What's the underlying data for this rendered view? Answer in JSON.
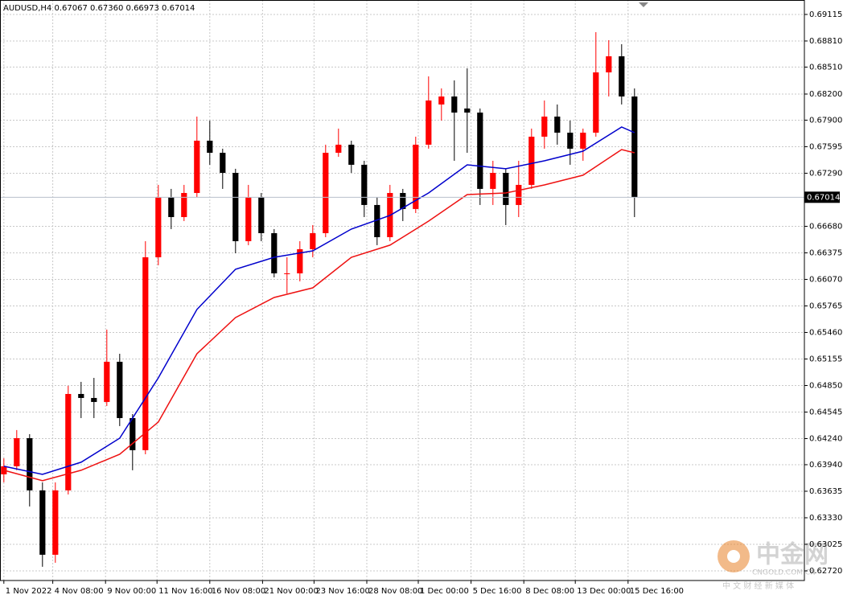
{
  "chart_data": {
    "type": "candlestick",
    "title": "AUDUSD,H4  0.67067 0.67360 0.66973 0.67014",
    "up_color": "#ff0000",
    "down_color": "#000000",
    "grid": true,
    "xlim": [
      -0.3,
      62.2
    ],
    "ylim": [
      0.62609,
      0.69281
    ],
    "xticks": [
      {
        "value": 0,
        "label": "1 Nov 2022"
      },
      {
        "value": 3.8,
        "label": "4 Nov 08:00"
      },
      {
        "value": 7.9,
        "label": "9 Nov 00:00"
      },
      {
        "value": 11.9,
        "label": "11 Nov 16:00"
      },
      {
        "value": 16,
        "label": "16 Nov 08:00"
      },
      {
        "value": 20.1,
        "label": "21 Nov 00:00"
      },
      {
        "value": 24.1,
        "label": "23 Nov 16:00"
      },
      {
        "value": 28.2,
        "label": "28 Nov 08:00"
      },
      {
        "value": 32.2,
        "label": "1 Dec 00:00"
      },
      {
        "value": 36.3,
        "label": "5 Dec 16:00"
      },
      {
        "value": 40.4,
        "label": "8 Dec 08:00"
      },
      {
        "value": 44.4,
        "label": "13 Dec 00:00"
      },
      {
        "value": 48.5,
        "label": "15 Dec 16:00"
      }
    ],
    "yticks": [
      {
        "value": 0.69115,
        "label": "0.69115"
      },
      {
        "value": 0.6881,
        "label": "0.68810"
      },
      {
        "value": 0.6851,
        "label": "0.68510"
      },
      {
        "value": 0.682,
        "label": "0.68200"
      },
      {
        "value": 0.679,
        "label": "0.67900"
      },
      {
        "value": 0.67595,
        "label": "0.67595"
      },
      {
        "value": 0.6729,
        "label": "0.67290"
      },
      {
        "value": 0.6668,
        "label": "0.66680"
      },
      {
        "value": 0.66375,
        "label": "0.66375"
      },
      {
        "value": 0.6607,
        "label": "0.66070"
      },
      {
        "value": 0.65765,
        "label": "0.65765"
      },
      {
        "value": 0.6546,
        "label": "0.65460"
      },
      {
        "value": 0.65155,
        "label": "0.65155"
      },
      {
        "value": 0.6485,
        "label": "0.64850"
      },
      {
        "value": 0.64545,
        "label": "0.64545"
      },
      {
        "value": 0.6424,
        "label": "0.64240"
      },
      {
        "value": 0.6394,
        "label": "0.63940"
      },
      {
        "value": 0.63635,
        "label": "0.63635"
      },
      {
        "value": 0.6333,
        "label": "0.63330"
      },
      {
        "value": 0.63025,
        "label": "0.63025"
      },
      {
        "value": 0.6272,
        "label": "0.62720"
      }
    ],
    "current_price": 0.67014,
    "open": [
      0.63829,
      0.63922,
      0.64245,
      0.63645,
      0.62905,
      0.63645,
      0.64753,
      0.64707,
      0.64661,
      0.65123,
      0.64476,
      0.64107,
      0.66324,
      0.67017,
      0.66786,
      0.67063,
      0.67664,
      0.67525,
      0.67294,
      0.66509,
      0.67017,
      0.66601,
      0.66139,
      0.66139,
      0.66417,
      0.66601,
      0.67525,
      0.67618,
      0.67387,
      0.66925,
      0.66555,
      0.67063,
      0.66879,
      0.67618,
      0.6808,
      0.68172,
      0.68034,
      0.67987,
      0.6711,
      0.67294,
      0.66925,
      0.67156,
      0.6771,
      0.67941,
      0.67756,
      0.67572,
      0.67756,
      0.68449,
      0.68634,
      0.68172
    ],
    "high": [
      0.64014,
      0.64338,
      0.64291,
      0.63737,
      0.63737,
      0.64846,
      0.64892,
      0.64938,
      0.65493,
      0.65215,
      0.64522,
      0.66509,
      0.67156,
      0.6711,
      0.67156,
      0.67941,
      0.67895,
      0.67572,
      0.67341,
      0.67156,
      0.67063,
      0.66648,
      0.66324,
      0.66509,
      0.66694,
      0.67618,
      0.67803,
      0.67664,
      0.67433,
      0.67017,
      0.67156,
      0.6711,
      0.6771,
      0.68403,
      0.68265,
      0.68357,
      0.68496,
      0.68034,
      0.67433,
      0.67341,
      0.67433,
      0.67803,
      0.68126,
      0.6808,
      0.67895,
      0.67803,
      0.68911,
      0.68819,
      0.68773,
      0.68265
    ],
    "low": [
      0.63737,
      0.63876,
      0.6346,
      0.62767,
      0.62813,
      0.63598,
      0.64476,
      0.64476,
      0.64615,
      0.64384,
      0.63876,
      0.6406,
      0.66232,
      0.66648,
      0.6674,
      0.67017,
      0.67387,
      0.6711,
      0.6637,
      0.66463,
      0.66509,
      0.66093,
      0.65908,
      0.66047,
      0.66324,
      0.66555,
      0.67479,
      0.67294,
      0.66786,
      0.66463,
      0.66509,
      0.6674,
      0.66832,
      0.67572,
      0.67895,
      0.67433,
      0.67525,
      0.66925,
      0.66925,
      0.66694,
      0.66786,
      0.6711,
      0.67572,
      0.67618,
      0.67387,
      0.67433,
      0.6771,
      0.68172,
      0.6808,
      0.66786
    ],
    "close": [
      0.63922,
      0.64245,
      0.63645,
      0.62905,
      0.63645,
      0.64753,
      0.64707,
      0.64661,
      0.65123,
      0.64476,
      0.64107,
      0.66324,
      0.67017,
      0.66786,
      0.67063,
      0.67664,
      0.67525,
      0.67294,
      0.66509,
      0.67017,
      0.66601,
      0.66139,
      0.66139,
      0.66417,
      0.66601,
      0.67525,
      0.67618,
      0.67387,
      0.66925,
      0.66555,
      0.67063,
      0.66879,
      0.67618,
      0.68126,
      0.68172,
      0.67987,
      0.67987,
      0.6711,
      0.67294,
      0.66925,
      0.67156,
      0.6771,
      0.67941,
      0.67756,
      0.67572,
      0.67756,
      0.68449,
      0.68634,
      0.68172,
      0.67017
    ],
    "lines": [
      {
        "color": "#0000cc",
        "x": [
          0,
          3,
          6,
          9,
          12,
          15,
          18,
          21,
          24,
          27,
          30,
          33,
          36,
          39,
          42,
          45,
          48,
          49
        ],
        "values": [
          0.63922,
          0.63829,
          0.63968,
          0.64245,
          0.64938,
          0.65724,
          0.66186,
          0.66324,
          0.66398,
          0.66648,
          0.66805,
          0.67063,
          0.67387,
          0.67341,
          0.67433,
          0.67544,
          0.67821,
          0.67756
        ]
      },
      {
        "color": "#ee1111",
        "x": [
          0,
          3,
          6,
          9,
          12,
          15,
          18,
          21,
          24,
          27,
          30,
          33,
          36,
          39,
          42,
          45,
          48,
          49
        ],
        "values": [
          0.63876,
          0.63756,
          0.63876,
          0.6406,
          0.6443,
          0.65215,
          0.65631,
          0.65862,
          0.65973,
          0.66324,
          0.66463,
          0.6674,
          0.67045,
          0.67063,
          0.67156,
          0.67267,
          0.67562,
          0.67525
        ]
      }
    ]
  },
  "watermark": {
    "name": "中金网",
    "site": "CNGOLD.COM.CN",
    "slogan": "中 文 财 经 新 媒 体"
  }
}
